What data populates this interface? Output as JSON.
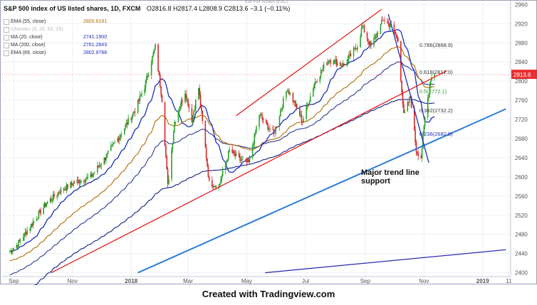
{
  "header": {
    "symbol": "S&P 500 index of US listed shares, 1D, FXCM",
    "ohlc": "O2816.8  H2817.4  L2808.9  C2813.6  −3.1 (−0.11%)",
    "fullscreen": "Exit Full Screen (ESC)"
  },
  "legend": [
    {
      "name": "EMA (55, close)",
      "value": "2800.6191",
      "color": "#b36b00"
    },
    {
      "name": "Ichimoku (9, 26, 52, 26)",
      "value": "",
      "color": "#bbbbbb"
    },
    {
      "name": "MA (20, close)",
      "value": "2741.1900",
      "color": "#1a2fb8"
    },
    {
      "name": "MA (200, close)",
      "value": "2761.2843",
      "color": "#1a2fb8"
    },
    {
      "name": "EMA (89, close)",
      "value": "2802.9788",
      "color": "#1a2fb8"
    }
  ],
  "footer": "Created with Tradingview.com",
  "annotation_lines": [
    "Major trend line",
    "support"
  ],
  "colors": {
    "up": "#2ca02c",
    "down": "#d62728",
    "ema55": "#b36b00",
    "ma20": "#1a2fb8",
    "ma200": "#1f2f8a",
    "channel": "#e02020",
    "trend": "#2b7bd6",
    "longtrend": "#2a2ab0",
    "price_tag": "#e83030"
  },
  "chart_data": {
    "type": "candlestick",
    "ylim": [
      2392,
      2968
    ],
    "y_ticks": [
      2400,
      2440,
      2480,
      2520,
      2560,
      2600,
      2640,
      2680,
      2720,
      2760,
      2800,
      2840,
      2880,
      2920,
      2960
    ],
    "x_ticks": [
      "Sep",
      "Nov",
      "2018",
      "Mar",
      "May",
      "Jul",
      "Sep",
      "Nov",
      "2019",
      "11"
    ],
    "last_price": "2813.6",
    "fib_levels": [
      {
        "label": "0.786(2868.9)",
        "value": 2868.9
      },
      {
        "label": "0.618(2812.0)",
        "value": 2812.0
      },
      {
        "label": "0.5(2772.1)",
        "value": 2772.1
      },
      {
        "label": "0.382(2732.2)",
        "value": 2732.2
      },
      {
        "label": "0.236(2682.8)",
        "value": 2682.8
      }
    ],
    "close_path": [
      [
        "2017-08-28",
        2444
      ],
      [
        "2017-09-05",
        2460
      ],
      [
        "2017-09-20",
        2502
      ],
      [
        "2017-10-05",
        2545
      ],
      [
        "2017-10-20",
        2572
      ],
      [
        "2017-11-05",
        2590
      ],
      [
        "2017-11-20",
        2600
      ],
      [
        "2017-12-05",
        2640
      ],
      [
        "2017-12-20",
        2686
      ],
      [
        "2018-01-05",
        2740
      ],
      [
        "2018-01-15",
        2790
      ],
      [
        "2018-01-26",
        2872
      ],
      [
        "2018-02-02",
        2762
      ],
      [
        "2018-02-08",
        2581
      ],
      [
        "2018-02-15",
        2715
      ],
      [
        "2018-02-26",
        2779
      ],
      [
        "2018-03-05",
        2720
      ],
      [
        "2018-03-12",
        2786
      ],
      [
        "2018-03-23",
        2588
      ],
      [
        "2018-04-02",
        2581
      ],
      [
        "2018-04-13",
        2656
      ],
      [
        "2018-04-24",
        2635
      ],
      [
        "2018-05-03",
        2629
      ],
      [
        "2018-05-14",
        2730
      ],
      [
        "2018-05-29",
        2689
      ],
      [
        "2018-06-12",
        2786
      ],
      [
        "2018-06-28",
        2716
      ],
      [
        "2018-07-10",
        2795
      ],
      [
        "2018-07-25",
        2846
      ],
      [
        "2018-08-10",
        2833
      ],
      [
        "2018-08-24",
        2875
      ],
      [
        "2018-08-29",
        2914
      ],
      [
        "2018-09-07",
        2872
      ],
      [
        "2018-09-20",
        2930
      ],
      [
        "2018-09-28",
        2914
      ],
      [
        "2018-10-05",
        2885
      ],
      [
        "2018-10-11",
        2728
      ],
      [
        "2018-10-18",
        2768
      ],
      [
        "2018-10-24",
        2656
      ],
      [
        "2018-10-29",
        2641
      ],
      [
        "2018-11-02",
        2723
      ],
      [
        "2018-11-08",
        2806
      ],
      [
        "2018-11-12",
        2813.6
      ]
    ],
    "lines": [
      {
        "name": "channel-upper",
        "from": [
          "2018-04-20",
          2728
        ],
        "to": [
          "2018-09-18",
          2950
        ]
      },
      {
        "name": "channel-lower",
        "from": [
          "2017-10-10",
          2400
        ],
        "to": [
          "2018-11-25",
          2822
        ]
      },
      {
        "name": "major-trend",
        "from": [
          "2018-01-08",
          2400
        ],
        "to": [
          "2019-01-25",
          2742
        ]
      },
      {
        "name": "long-trend",
        "from": [
          "2018-05-20",
          2400
        ],
        "to": [
          "2019-01-25",
          2448
        ]
      }
    ]
  }
}
